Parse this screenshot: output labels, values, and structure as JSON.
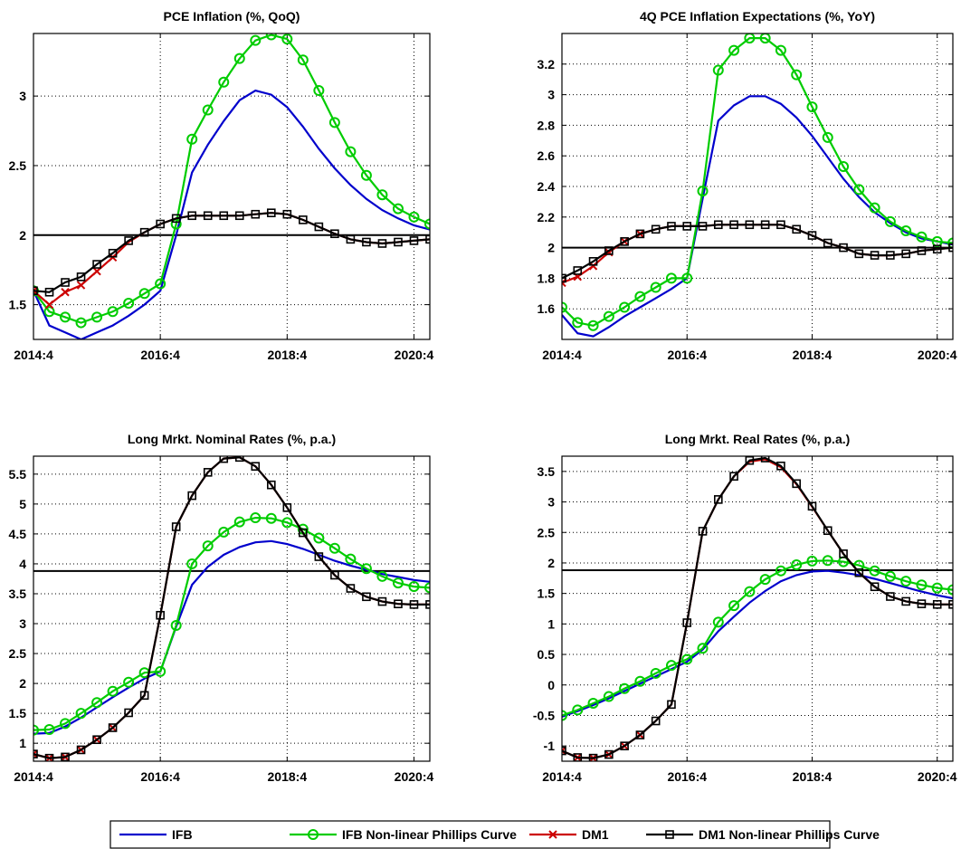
{
  "legend": [
    {
      "name": "IFB",
      "color": "#0000cc",
      "marker": "none"
    },
    {
      "name": "IFB Non-linear Phillips Curve",
      "color": "#00cc00",
      "marker": "circle"
    },
    {
      "name": "DM1",
      "color": "#cc0000",
      "marker": "x"
    },
    {
      "name": "DM1 Non-linear Phillips Curve",
      "color": "#000000",
      "marker": "square"
    }
  ],
  "chart_data": [
    {
      "type": "line",
      "title": "PCE Inflation (%, QoQ)",
      "xlabel": "",
      "ylabel": "",
      "xticks": [
        "2014:4",
        "2016:4",
        "2018:4",
        "2020:4"
      ],
      "xlim": [
        0,
        25
      ],
      "ylim": [
        1.25,
        3.45
      ],
      "yticks": [
        "1.5",
        "2",
        "2.5",
        "3"
      ],
      "reference_line": 2,
      "grid": true,
      "series": [
        {
          "name": "IFB",
          "values": [
            1.6,
            1.35,
            1.3,
            1.25,
            1.3,
            1.35,
            1.42,
            1.5,
            1.6,
            2.0,
            2.45,
            2.65,
            2.82,
            2.97,
            3.04,
            3.01,
            2.92,
            2.78,
            2.62,
            2.48,
            2.36,
            2.26,
            2.18,
            2.12,
            2.07,
            2.04
          ]
        },
        {
          "name": "IFB Non-linear Phillips Curve",
          "values": [
            1.6,
            1.45,
            1.41,
            1.37,
            1.41,
            1.45,
            1.51,
            1.58,
            1.65,
            2.08,
            2.69,
            2.9,
            3.1,
            3.27,
            3.4,
            3.44,
            3.41,
            3.26,
            3.04,
            2.81,
            2.6,
            2.43,
            2.29,
            2.19,
            2.13,
            2.08
          ]
        },
        {
          "name": "DM1",
          "values": [
            1.6,
            1.5,
            1.59,
            1.64,
            1.74,
            1.84,
            1.95,
            2.02,
            2.08,
            2.12,
            2.14,
            2.14,
            2.14,
            2.14,
            2.15,
            2.16,
            2.15,
            2.11,
            2.06,
            2.01,
            1.97,
            1.95,
            1.94,
            1.95,
            1.96,
            1.97
          ]
        },
        {
          "name": "DM1 Non-linear Phillips Curve",
          "values": [
            1.6,
            1.59,
            1.66,
            1.7,
            1.79,
            1.87,
            1.96,
            2.02,
            2.08,
            2.12,
            2.14,
            2.14,
            2.14,
            2.14,
            2.15,
            2.16,
            2.15,
            2.11,
            2.06,
            2.01,
            1.97,
            1.95,
            1.94,
            1.95,
            1.96,
            1.97
          ]
        }
      ]
    },
    {
      "type": "line",
      "title": "4Q PCE Inflation Expectations (%, YoY)",
      "xlabel": "",
      "ylabel": "",
      "xticks": [
        "2014:4",
        "2016:4",
        "2018:4",
        "2020:4"
      ],
      "xlim": [
        0,
        25
      ],
      "ylim": [
        1.4,
        3.4
      ],
      "yticks": [
        "1.6",
        "1.8",
        "2",
        "2.2",
        "2.4",
        "2.6",
        "2.8",
        "3",
        "3.2"
      ],
      "reference_line": 2,
      "grid": true,
      "series": [
        {
          "name": "IFB",
          "values": [
            1.56,
            1.44,
            1.42,
            1.48,
            1.55,
            1.61,
            1.67,
            1.73,
            1.8,
            2.32,
            2.83,
            2.93,
            2.99,
            2.99,
            2.94,
            2.85,
            2.73,
            2.59,
            2.45,
            2.33,
            2.23,
            2.16,
            2.1,
            2.06,
            2.04,
            2.02
          ]
        },
        {
          "name": "IFB Non-linear Phillips Curve",
          "values": [
            1.61,
            1.51,
            1.49,
            1.55,
            1.61,
            1.68,
            1.74,
            1.8,
            1.8,
            2.37,
            3.16,
            3.29,
            3.37,
            3.37,
            3.29,
            3.13,
            2.92,
            2.72,
            2.53,
            2.38,
            2.26,
            2.17,
            2.11,
            2.07,
            2.04,
            2.03
          ]
        },
        {
          "name": "DM1",
          "values": [
            1.77,
            1.81,
            1.88,
            1.97,
            2.04,
            2.09,
            2.12,
            2.14,
            2.14,
            2.14,
            2.15,
            2.15,
            2.15,
            2.15,
            2.15,
            2.12,
            2.08,
            2.03,
            2.0,
            1.96,
            1.95,
            1.95,
            1.96,
            1.98,
            1.99,
            2.0
          ]
        },
        {
          "name": "DM1 Non-linear Phillips Curve",
          "values": [
            1.8,
            1.85,
            1.91,
            1.98,
            2.04,
            2.09,
            2.12,
            2.14,
            2.14,
            2.14,
            2.15,
            2.15,
            2.15,
            2.15,
            2.15,
            2.12,
            2.08,
            2.03,
            2.0,
            1.96,
            1.95,
            1.95,
            1.96,
            1.98,
            1.99,
            2.0
          ]
        }
      ]
    },
    {
      "type": "line",
      "title": "Long Mrkt. Nominal Rates (%, p.a.)",
      "xlabel": "",
      "ylabel": "",
      "xticks": [
        "2014:4",
        "2016:4",
        "2018:4",
        "2020:4"
      ],
      "xlim": [
        0,
        25
      ],
      "ylim": [
        0.7,
        5.8
      ],
      "yticks": [
        "1",
        "1.5",
        "2",
        "2.5",
        "3",
        "3.5",
        "4",
        "4.5",
        "5",
        "5.5"
      ],
      "reference_line": 3.88,
      "grid": true,
      "series": [
        {
          "name": "IFB",
          "values": [
            1.16,
            1.17,
            1.28,
            1.43,
            1.6,
            1.77,
            1.93,
            2.08,
            2.2,
            2.95,
            3.65,
            3.95,
            4.15,
            4.28,
            4.36,
            4.38,
            4.33,
            4.25,
            4.15,
            4.05,
            3.97,
            3.9,
            3.83,
            3.78,
            3.73,
            3.7
          ]
        },
        {
          "name": "IFB Non-linear Phillips Curve",
          "values": [
            1.22,
            1.23,
            1.33,
            1.5,
            1.68,
            1.87,
            2.02,
            2.18,
            2.2,
            2.97,
            4.0,
            4.3,
            4.53,
            4.7,
            4.77,
            4.76,
            4.69,
            4.58,
            4.43,
            4.26,
            4.08,
            3.92,
            3.79,
            3.68,
            3.62,
            3.6
          ]
        },
        {
          "name": "DM1",
          "values": [
            0.82,
            0.75,
            0.77,
            0.89,
            1.06,
            1.26,
            1.51,
            1.8,
            3.14,
            4.62,
            5.14,
            5.53,
            5.76,
            5.78,
            5.63,
            5.32,
            4.94,
            4.52,
            4.12,
            3.81,
            3.59,
            3.45,
            3.37,
            3.33,
            3.32,
            3.32
          ]
        },
        {
          "name": "DM1 Non-linear Phillips Curve",
          "values": [
            0.82,
            0.75,
            0.77,
            0.89,
            1.06,
            1.26,
            1.51,
            1.8,
            3.14,
            4.62,
            5.14,
            5.53,
            5.76,
            5.78,
            5.63,
            5.32,
            4.94,
            4.52,
            4.12,
            3.81,
            3.59,
            3.45,
            3.37,
            3.33,
            3.32,
            3.32
          ]
        }
      ]
    },
    {
      "type": "line",
      "title": "Long Mrkt. Real Rates (%, p.a.)",
      "xlabel": "",
      "ylabel": "",
      "xticks": [
        "2014:4",
        "2016:4",
        "2018:4",
        "2020:4"
      ],
      "xlim": [
        0,
        25
      ],
      "ylim": [
        -1.25,
        3.75
      ],
      "yticks": [
        "-1",
        "-0.5",
        "0",
        "0.5",
        "1",
        "1.5",
        "2",
        "2.5",
        "3",
        "3.5"
      ],
      "reference_line": 1.88,
      "grid": true,
      "series": [
        {
          "name": "IFB",
          "values": [
            -0.52,
            -0.43,
            -0.33,
            -0.22,
            -0.1,
            0.02,
            0.14,
            0.26,
            0.38,
            0.58,
            0.88,
            1.12,
            1.35,
            1.54,
            1.7,
            1.8,
            1.86,
            1.87,
            1.84,
            1.8,
            1.74,
            1.67,
            1.6,
            1.53,
            1.47,
            1.42
          ]
        },
        {
          "name": "IFB Non-linear Phillips Curve",
          "values": [
            -0.5,
            -0.41,
            -0.3,
            -0.19,
            -0.06,
            0.06,
            0.19,
            0.32,
            0.42,
            0.6,
            1.03,
            1.3,
            1.53,
            1.73,
            1.87,
            1.97,
            2.03,
            2.04,
            2.02,
            1.96,
            1.87,
            1.78,
            1.7,
            1.64,
            1.59,
            1.56
          ]
        },
        {
          "name": "DM1",
          "values": [
            -1.08,
            -1.19,
            -1.2,
            -1.14,
            -1.0,
            -0.82,
            -0.59,
            -0.32,
            1.02,
            2.52,
            3.04,
            3.42,
            3.66,
            3.7,
            3.57,
            3.29,
            2.92,
            2.53,
            2.15,
            1.84,
            1.61,
            1.45,
            1.37,
            1.33,
            1.32,
            1.32
          ]
        },
        {
          "name": "DM1 Non-linear Phillips Curve",
          "values": [
            -1.08,
            -1.19,
            -1.2,
            -1.14,
            -1.0,
            -0.82,
            -0.59,
            -0.32,
            1.02,
            2.52,
            3.04,
            3.42,
            3.68,
            3.72,
            3.59,
            3.3,
            2.93,
            2.53,
            2.15,
            1.84,
            1.61,
            1.45,
            1.37,
            1.33,
            1.32,
            1.32
          ]
        }
      ]
    }
  ]
}
